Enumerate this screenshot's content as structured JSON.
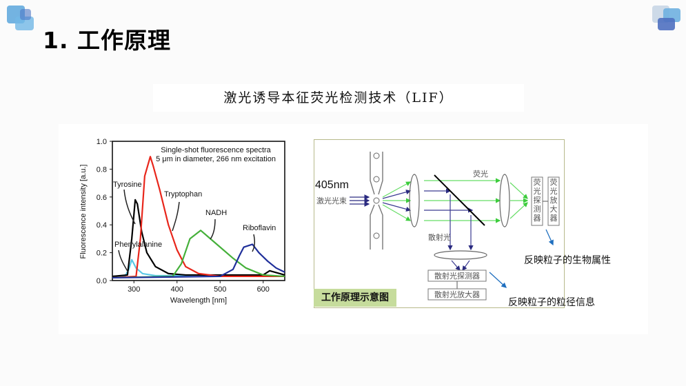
{
  "slide": {
    "title": "1. 工作原理",
    "subtitle": "激光诱导本征荧光检测技术（LIF）",
    "colors": {
      "background": "#fbfbfb",
      "panel": "#ffffff",
      "logo_light": "#6fb0e0",
      "logo_dark": "#4f74c4",
      "diagram_border": "#b7b98a",
      "caption_bg": "#c6dc9c",
      "arrow_blue": "#1f6fbf"
    }
  },
  "chart_data": {
    "type": "line",
    "title": "Single-shot fluorescence spectra",
    "subtitle": "5 μm in diameter, 266 nm excitation",
    "xlabel": "Wavelength [nm]",
    "ylabel": "Fluorescence intensity [a.u.]",
    "xlim": [
      250,
      650
    ],
    "ylim": [
      0.0,
      1.0
    ],
    "xticks": [
      "300",
      "400",
      "500",
      "600"
    ],
    "yticks": [
      "0.0",
      "0.2",
      "0.4",
      "0.6",
      "0.8",
      "1.0"
    ],
    "grid": false,
    "series": [
      {
        "name": "Phenylalanine",
        "color": "#5bc8e6",
        "x": [
          250,
          280,
          288,
          295,
          305,
          320,
          350,
          400,
          450,
          500,
          650
        ],
        "y": [
          0.03,
          0.035,
          0.08,
          0.15,
          0.09,
          0.05,
          0.035,
          0.035,
          0.04,
          0.03,
          0.03
        ]
      },
      {
        "name": "Tyrosine",
        "color": "#000000",
        "x": [
          250,
          285,
          295,
          303,
          308,
          318,
          330,
          350,
          380,
          420,
          600,
          615,
          650
        ],
        "y": [
          0.03,
          0.04,
          0.3,
          0.58,
          0.55,
          0.35,
          0.2,
          0.1,
          0.05,
          0.04,
          0.04,
          0.07,
          0.04
        ]
      },
      {
        "name": "Tryptophan",
        "color": "#e8261b",
        "x": [
          250,
          305,
          315,
          325,
          338,
          345,
          360,
          380,
          400,
          420,
          450,
          500,
          650
        ],
        "y": [
          0.02,
          0.03,
          0.3,
          0.75,
          0.89,
          0.82,
          0.65,
          0.4,
          0.22,
          0.1,
          0.05,
          0.03,
          0.03
        ]
      },
      {
        "name": "NADH",
        "color": "#45b03a",
        "x": [
          250,
          390,
          410,
          430,
          455,
          470,
          500,
          530,
          560,
          600,
          650
        ],
        "y": [
          0.02,
          0.03,
          0.12,
          0.3,
          0.36,
          0.32,
          0.24,
          0.16,
          0.09,
          0.04,
          0.03
        ]
      },
      {
        "name": "Riboflavin",
        "color": "#1f2f9a",
        "x": [
          250,
          500,
          530,
          545,
          555,
          575,
          590,
          610,
          630,
          650
        ],
        "y": [
          0.02,
          0.03,
          0.08,
          0.18,
          0.24,
          0.26,
          0.2,
          0.14,
          0.09,
          0.06
        ]
      }
    ],
    "annotations": [
      "Tyrosine",
      "Tryptophan",
      "NADH",
      "Riboflavin",
      "Phenylalanine"
    ]
  },
  "diagram": {
    "wavelength_label": "405nm",
    "laser_beam_label": "激光光束",
    "fluorescence_label": "荧光",
    "scatter_label": "散射光",
    "fluor_detector": "荧光探测器",
    "fluor_amplifier": "荧光放大器",
    "scatter_detector": "散射光探测器",
    "scatter_amplifier": "散射光放大器",
    "caption": "工作原理示意图"
  },
  "notes": {
    "bio_property": "反映粒子的生物属性",
    "size_info": "反映粒子的粒径信息"
  }
}
